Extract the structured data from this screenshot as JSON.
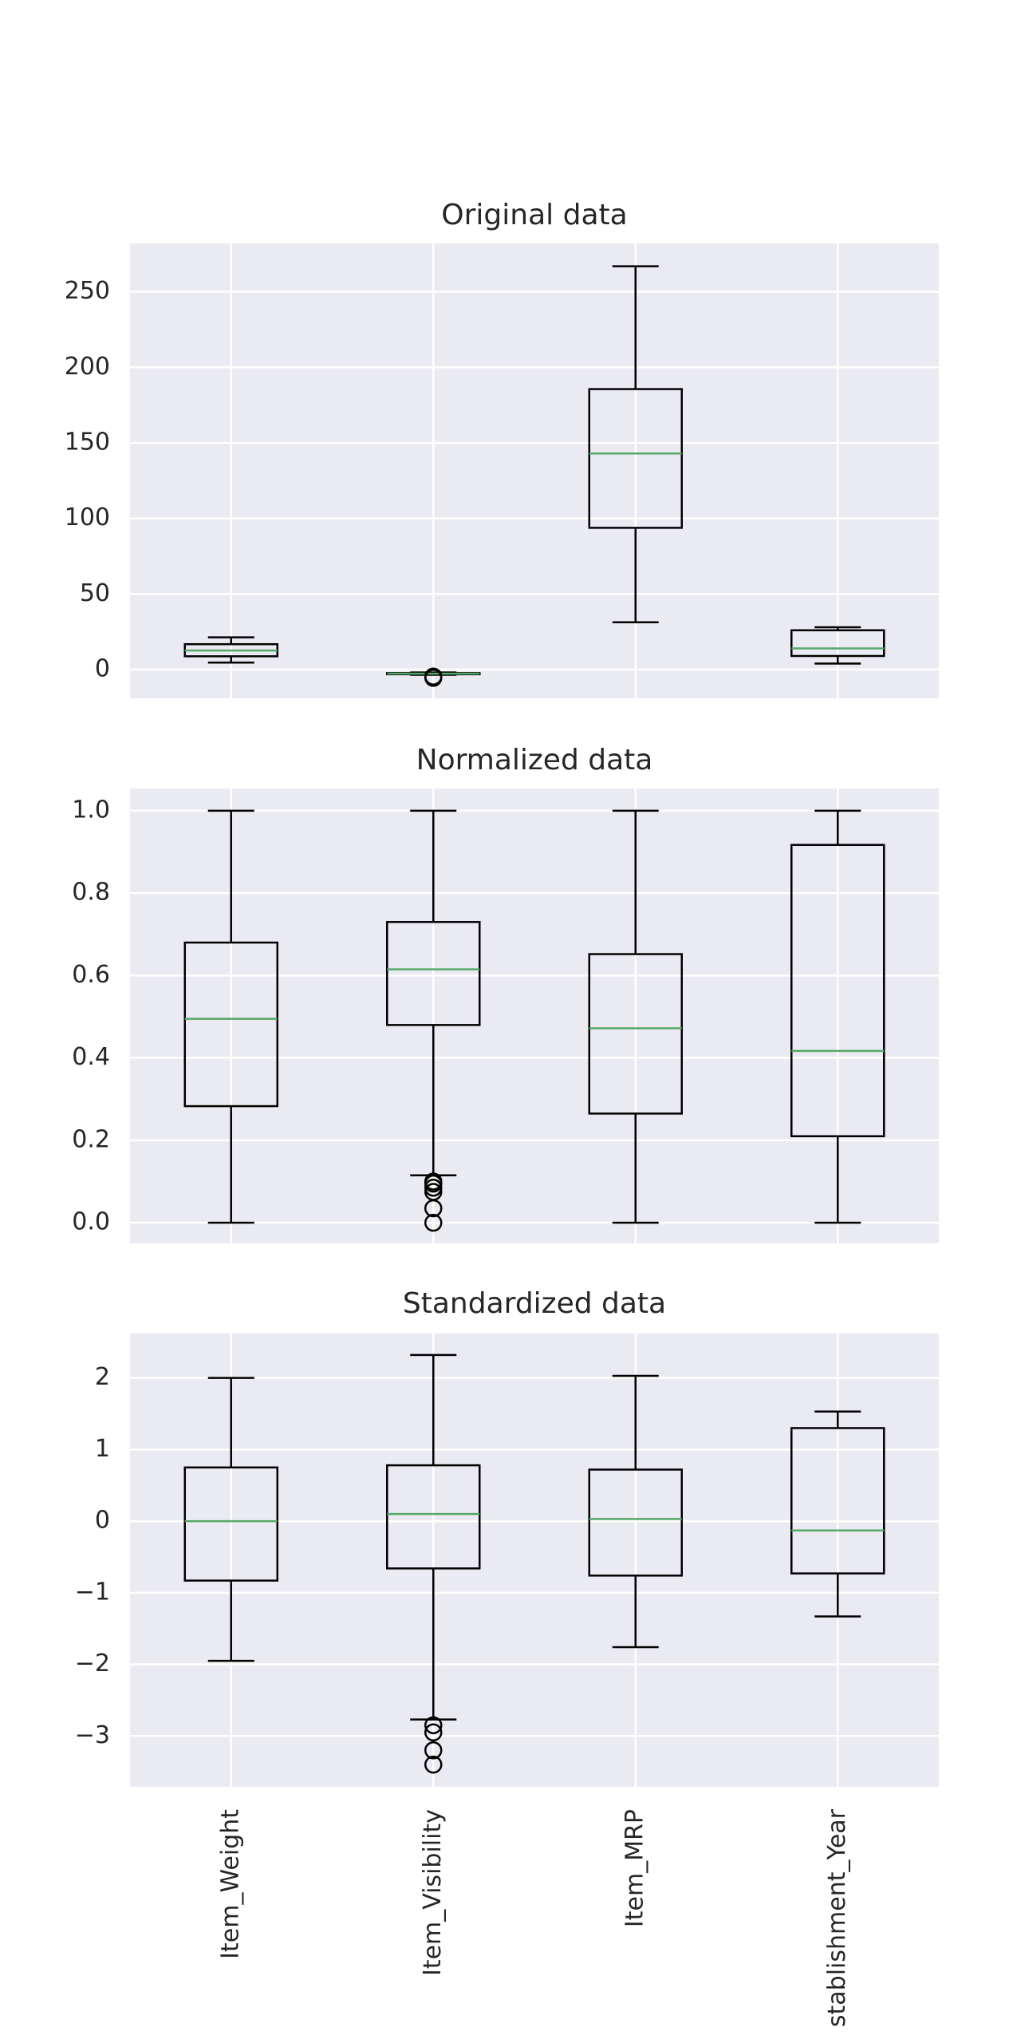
{
  "chart_data": [
    {
      "type": "box",
      "title": "Original data",
      "ylim": [
        -19,
        282
      ],
      "yticks": [
        0,
        50,
        100,
        150,
        200,
        250
      ],
      "grid": true,
      "box_color": "#000000",
      "median_color": "#55a868",
      "background": "#eaeaf2",
      "boxes": [
        {
          "whislo": 4.6,
          "q1": 8.8,
          "med": 12.6,
          "q3": 16.8,
          "whishi": 21.3,
          "fliers": []
        },
        {
          "whislo": -3.4,
          "q1": -3.1,
          "med": -2.7,
          "q3": -2.3,
          "whishi": -1.9,
          "fliers": [
            -5.5,
            -4.6
          ]
        },
        {
          "whislo": 31.3,
          "q1": 93.8,
          "med": 143,
          "q3": 185.6,
          "whishi": 266.9,
          "fliers": []
        },
        {
          "whislo": 4,
          "q1": 9,
          "med": 14,
          "q3": 26,
          "whishi": 28,
          "fliers": []
        }
      ]
    },
    {
      "type": "box",
      "title": "Normalized data",
      "ylim": [
        -0.05,
        1.054
      ],
      "yticks": [
        {
          "value": 0,
          "label": "0.0"
        },
        0.2,
        0.4,
        0.6,
        0.8,
        {
          "value": 1,
          "label": "1.0"
        }
      ],
      "grid": true,
      "box_color": "#000000",
      "median_color": "#55a868",
      "background": "#eaeaf2",
      "boxes": [
        {
          "whislo": 0,
          "q1": 0.283,
          "med": 0.495,
          "q3": 0.68,
          "whishi": 1,
          "fliers": []
        },
        {
          "whislo": 0.115,
          "q1": 0.48,
          "med": 0.615,
          "q3": 0.73,
          "whishi": 1,
          "fliers": [
            0,
            0.035,
            0.075,
            0.085,
            0.095,
            0.1
          ]
        },
        {
          "whislo": 0,
          "q1": 0.265,
          "med": 0.472,
          "q3": 0.652,
          "whishi": 1,
          "fliers": []
        },
        {
          "whislo": 0,
          "q1": 0.21,
          "med": 0.417,
          "q3": 0.917,
          "whishi": 1,
          "fliers": []
        }
      ]
    },
    {
      "type": "box",
      "title": "Standardized data",
      "ylim": [
        -3.71,
        2.62
      ],
      "yticks": [
        {
          "value": -3,
          "label": "−3"
        },
        {
          "value": -2,
          "label": "−2"
        },
        {
          "value": -1,
          "label": "−1"
        },
        0,
        1,
        2
      ],
      "grid": true,
      "box_color": "#000000",
      "median_color": "#55a868",
      "background": "#eaeaf2",
      "categories": [
        "Item_Weight",
        "Item_Visibility",
        "Item_MRP",
        "stablishment_Year"
      ],
      "boxes": [
        {
          "whislo": -1.95,
          "q1": -0.83,
          "med": 0,
          "q3": 0.75,
          "whishi": 2,
          "fliers": []
        },
        {
          "whislo": -2.77,
          "q1": -0.66,
          "med": 0.1,
          "q3": 0.78,
          "whishi": 2.32,
          "fliers": [
            -2.85,
            -2.95,
            -3.2,
            -3.4
          ]
        },
        {
          "whislo": -1.76,
          "q1": -0.76,
          "med": 0.03,
          "q3": 0.72,
          "whishi": 2.03,
          "fliers": []
        },
        {
          "whislo": -1.33,
          "q1": -0.73,
          "med": -0.13,
          "q3": 1.3,
          "whishi": 1.53,
          "fliers": []
        }
      ]
    }
  ]
}
